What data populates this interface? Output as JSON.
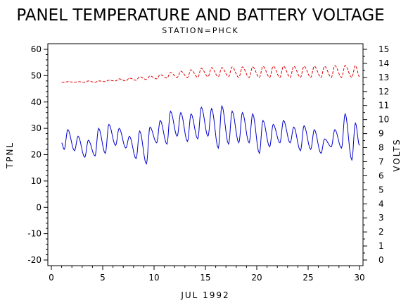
{
  "colors": {
    "axis": "#000000",
    "temperature": "#0000cc",
    "voltage": "#dd0000"
  },
  "chart_data": {
    "type": "line",
    "title": "PANEL TEMPERATURE AND BATTERY VOLTAGE",
    "subtitle": "STATION=PHCK",
    "xlabel": "JUL 1992",
    "ylabel_left": "TPNL",
    "ylabel_right": "VOLTS",
    "xlim": [
      0,
      30
    ],
    "ylim_left": [
      -20,
      60
    ],
    "ylim_right": [
      0,
      15
    ],
    "x_ticks": [
      "0",
      "5",
      "10",
      "15",
      "20",
      "25",
      "30"
    ],
    "y_left_ticks": [
      "-20",
      "-10",
      "0",
      "10",
      "20",
      "30",
      "40",
      "50",
      "60"
    ],
    "y_right_ticks": [
      "0",
      "1",
      "2",
      "3",
      "4",
      "5",
      "6",
      "7",
      "8",
      "9",
      "10",
      "11",
      "12",
      "13",
      "14",
      "15"
    ],
    "grid": false,
    "series": [
      {
        "axis": "left",
        "style": "solid",
        "color": "#0000cc",
        "daily_peaks": [
          29.5,
          27,
          25.5,
          30,
          31.5,
          30,
          27,
          29,
          30.5,
          33,
          36.5,
          36,
          35.5,
          38,
          37.5,
          38.5,
          36.5,
          36,
          35.5,
          33,
          31.5,
          33,
          30.5,
          31,
          29.5,
          26,
          29.5,
          35.5,
          32,
          34.5
        ],
        "daily_troughs": [
          22,
          21.5,
          19,
          19.5,
          20.5,
          23.5,
          22.5,
          18.5,
          16.5,
          24.5,
          24,
          27,
          25,
          26,
          27,
          22.5,
          24,
          24.5,
          24.5,
          20.5,
          23,
          24.5,
          24.5,
          21.5,
          22,
          20.5,
          23,
          22.5,
          18,
          23.5
        ],
        "start": 24.5,
        "end": 23.5
      },
      {
        "axis": "right",
        "style": "dashed",
        "color": "#dd0000",
        "daily_peaks": [
          12.7,
          12.7,
          12.75,
          12.75,
          12.8,
          12.9,
          12.95,
          13.05,
          13.1,
          13.2,
          13.35,
          13.45,
          13.55,
          13.65,
          13.7,
          13.7,
          13.75,
          13.75,
          13.75,
          13.8,
          13.8,
          13.8,
          13.8,
          13.8,
          13.8,
          13.8,
          13.85,
          13.85,
          13.85,
          13.85
        ],
        "daily_troughs": [
          12.65,
          12.65,
          12.65,
          12.65,
          12.7,
          12.75,
          12.75,
          12.8,
          12.85,
          12.9,
          12.95,
          13.0,
          13.0,
          13.0,
          13.05,
          13.05,
          13.05,
          13.0,
          13.0,
          13.0,
          13.0,
          13.0,
          13.0,
          13.0,
          13.0,
          13.0,
          13.0,
          13.0,
          13.0,
          13.0
        ],
        "start": 12.65,
        "end": 13.05
      }
    ]
  }
}
